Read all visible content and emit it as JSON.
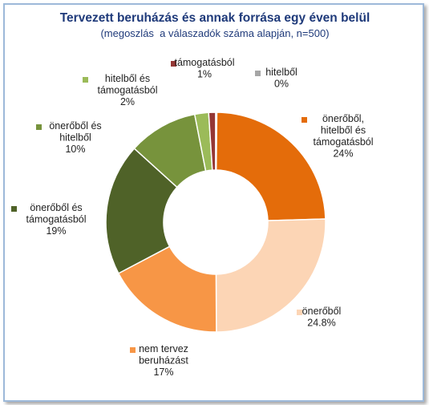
{
  "chart_data": {
    "type": "pie",
    "variant": "donut",
    "title": "Tervezett beruházás és annak forrása egy éven belül",
    "subtitle": "(megoszlás  a válaszadók száma alapján, n=500)",
    "slices": [
      {
        "label": "önerőből, hitelből és támogatásból",
        "value": 24,
        "value_label": "24%",
        "color": "#e46c0a"
      },
      {
        "label": "önerőből",
        "value": 24.8,
        "value_label": "24.8%",
        "color": "#fcd5b5"
      },
      {
        "label": "nem tervez beruházást",
        "value": 17,
        "value_label": "17%",
        "color": "#f79646"
      },
      {
        "label": "önerőből és támogatásból",
        "value": 19,
        "value_label": "19%",
        "color": "#4f6228"
      },
      {
        "label": "önerőből és hitelből",
        "value": 10,
        "value_label": "10%",
        "color": "#77933c"
      },
      {
        "label": "hitelből és támogatásból",
        "value": 2,
        "value_label": "2%",
        "color": "#9bbb59"
      },
      {
        "label": "támogatásból",
        "value": 1,
        "value_label": "1%",
        "color": "#953735"
      },
      {
        "label": "hitelből",
        "value": 0,
        "value_label": "0%",
        "color": "#a6a6a6"
      }
    ],
    "legend_placement": "around"
  }
}
